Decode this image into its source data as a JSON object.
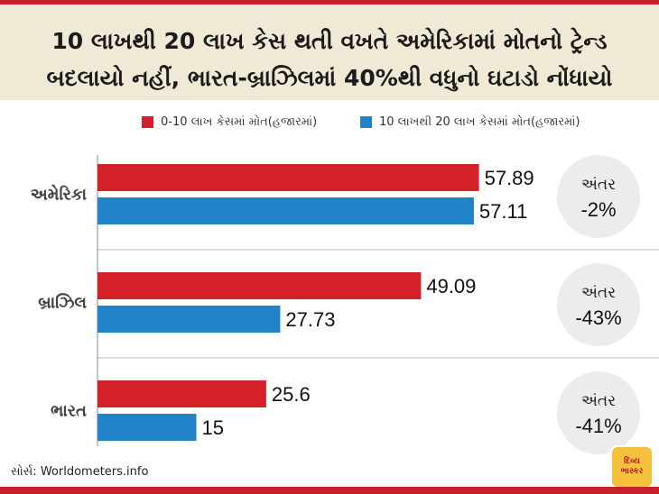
{
  "title": {
    "line1": "10 લાખથી 20 લાખ કેસ થતી વખતે અમેરિકામાં મોતનો ટ્રેન્ડ",
    "line2": "બદલાયો નહીં, ભારત-બ્રાઝિલમાં 40%થી વધુનો ઘટાડો નોંધાયો"
  },
  "legend": {
    "series1": "0-10 લાખ કેસમાં મોત(હજારમાં)",
    "series2": "10 લાખથી 20 લાખ કેસમાં મોત(હજારમાં)"
  },
  "colors": {
    "series1": "#d4202b",
    "series2": "#2282c8",
    "badge": "#ececec",
    "header": "#efe9d6",
    "accent": "#c8202b"
  },
  "chart_data": {
    "type": "bar",
    "orientation": "horizontal",
    "categories": [
      "અમેરિકા",
      "બ્રાઝિલ",
      "ભારત"
    ],
    "series": [
      {
        "name": "0-10 લાખ કેસમાં મોત(હજારમાં)",
        "values": [
          57.89,
          49.09,
          25.6
        ],
        "labels": [
          "57.89",
          "49.09",
          "25.6"
        ]
      },
      {
        "name": "10 લાખથી 20 લાખ કેસમાં મોત(હજારમાં)",
        "values": [
          57.11,
          27.73,
          15
        ],
        "labels": [
          "57.11",
          "27.73",
          "15"
        ]
      }
    ],
    "diff_title": "અંતર",
    "diffs": [
      "-2%",
      "-43%",
      "-41%"
    ],
    "xlim": [
      0,
      65
    ],
    "legend_position": "top",
    "grid": false
  },
  "footer": {
    "source": "સોર્સ: Worldometers.info",
    "logo_line1": "દિવ્ય",
    "logo_line2": "ભાસ્કર"
  }
}
